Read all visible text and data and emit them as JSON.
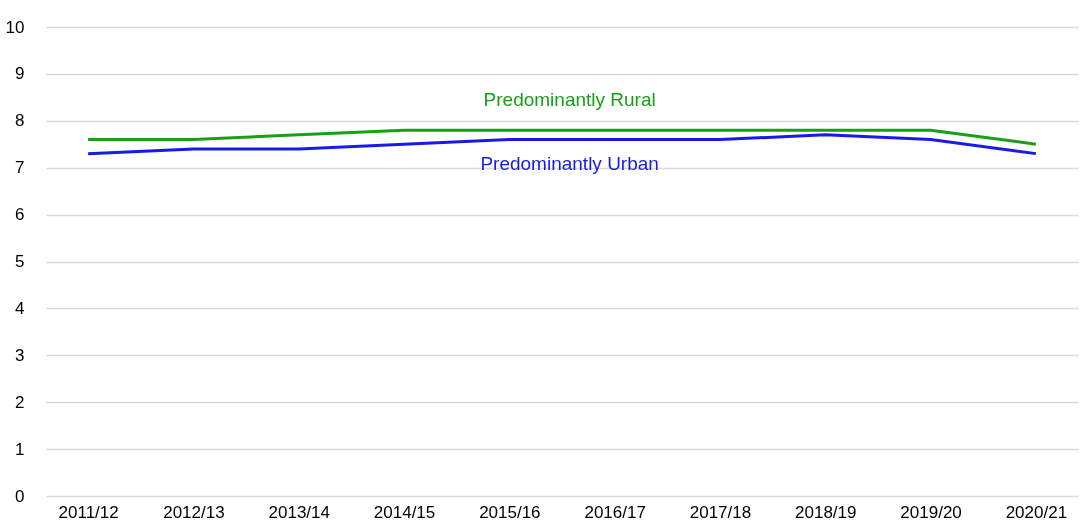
{
  "chart_data": {
    "type": "line",
    "categories": [
      "2011/12",
      "2012/13",
      "2013/14",
      "2014/15",
      "2015/16",
      "2016/17",
      "2017/18",
      "2018/19",
      "2019/20",
      "2020/21"
    ],
    "series": [
      {
        "name": "Predominantly Rural",
        "color": "#17a017",
        "values": [
          7.6,
          7.6,
          7.7,
          7.8,
          7.8,
          7.8,
          7.8,
          7.8,
          7.8,
          7.5
        ]
      },
      {
        "name": "Predominantly Urban",
        "color": "#1a1ae6",
        "values": [
          7.3,
          7.4,
          7.4,
          7.5,
          7.6,
          7.6,
          7.6,
          7.7,
          7.6,
          7.3
        ]
      }
    ],
    "ylim": [
      0,
      10
    ],
    "yticks": [
      0,
      1,
      2,
      3,
      4,
      5,
      6,
      7,
      8,
      9,
      10
    ],
    "grid": "y",
    "marker": "none",
    "line_style": "solid"
  }
}
